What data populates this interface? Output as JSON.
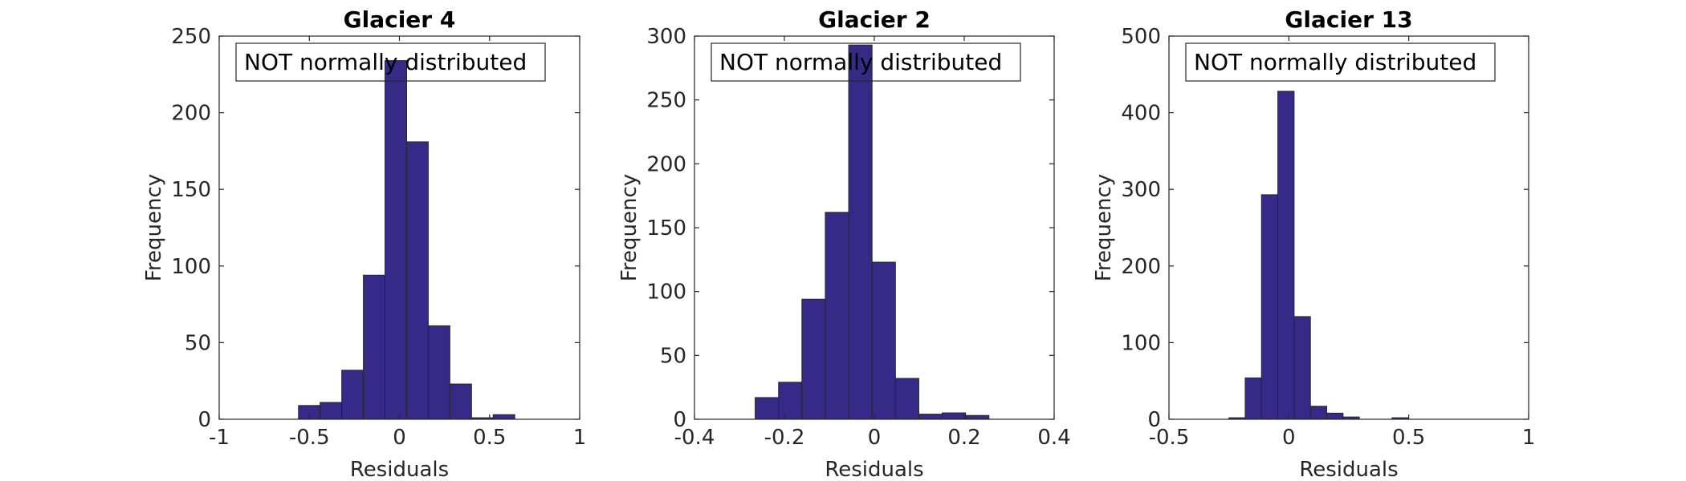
{
  "chart_data": [
    {
      "type": "bar",
      "title": "Glacier 4",
      "xlabel": "Residuals",
      "ylabel": "Frequency",
      "xlim": [
        -1,
        1
      ],
      "ylim": [
        0,
        250
      ],
      "xticks": [
        -1,
        -0.5,
        0,
        0.5,
        1
      ],
      "xtick_labels": [
        "-1",
        "-0.5",
        "0",
        "0.5",
        "1"
      ],
      "yticks": [
        0,
        50,
        100,
        150,
        200,
        250
      ],
      "ytick_labels": [
        "0",
        "50",
        "100",
        "150",
        "200",
        "250"
      ],
      "bin_edges": [
        -0.56,
        -0.44,
        -0.32,
        -0.2,
        -0.08,
        0.04,
        0.16,
        0.28,
        0.4,
        0.52,
        0.64
      ],
      "values": [
        9,
        11,
        32,
        94,
        234,
        181,
        61,
        23,
        1,
        3
      ],
      "annotation": "NOT normally distributed",
      "bar_color": "#352a87",
      "grid": false
    },
    {
      "type": "bar",
      "title": "Glacier 2",
      "xlabel": "Residuals",
      "ylabel": "Frequency",
      "xlim": [
        -0.4,
        0.4
      ],
      "ylim": [
        0,
        300
      ],
      "xticks": [
        -0.4,
        -0.2,
        0,
        0.2,
        0.4
      ],
      "xtick_labels": [
        "-0.4",
        "-0.2",
        "0",
        "0.2",
        "0.4"
      ],
      "yticks": [
        0,
        50,
        100,
        150,
        200,
        250,
        300
      ],
      "ytick_labels": [
        "0",
        "50",
        "100",
        "150",
        "200",
        "250",
        "300"
      ],
      "bin_edges": [
        -0.265,
        -0.213,
        -0.161,
        -0.109,
        -0.057,
        -0.005,
        0.047,
        0.099,
        0.151,
        0.203,
        0.255,
        0.307,
        0.359
      ],
      "values": [
        17,
        29,
        94,
        162,
        293,
        123,
        32,
        4,
        5,
        3,
        0,
        0
      ],
      "annotation": "NOT normally distributed",
      "bar_color": "#352a87",
      "grid": false
    },
    {
      "type": "bar",
      "title": "Glacier 13",
      "xlabel": "Residuals",
      "ylabel": "Frequency",
      "xlim": [
        -0.5,
        1
      ],
      "ylim": [
        0,
        500
      ],
      "xticks": [
        -0.5,
        0,
        0.5,
        1
      ],
      "xtick_labels": [
        "-0.5",
        "0",
        "0.5",
        "1"
      ],
      "yticks": [
        0,
        100,
        200,
        300,
        400,
        500
      ],
      "ytick_labels": [
        "0",
        "100",
        "200",
        "300",
        "400",
        "500"
      ],
      "bin_edges": [
        -0.25,
        -0.182,
        -0.114,
        -0.046,
        0.022,
        0.09,
        0.158,
        0.226,
        0.294,
        0.362,
        0.43,
        0.498,
        0.566
      ],
      "values": [
        2,
        54,
        293,
        428,
        134,
        17,
        8,
        3,
        0,
        0,
        2,
        0
      ],
      "annotation": "NOT normally distributed",
      "bar_color": "#352a87",
      "grid": false
    }
  ]
}
